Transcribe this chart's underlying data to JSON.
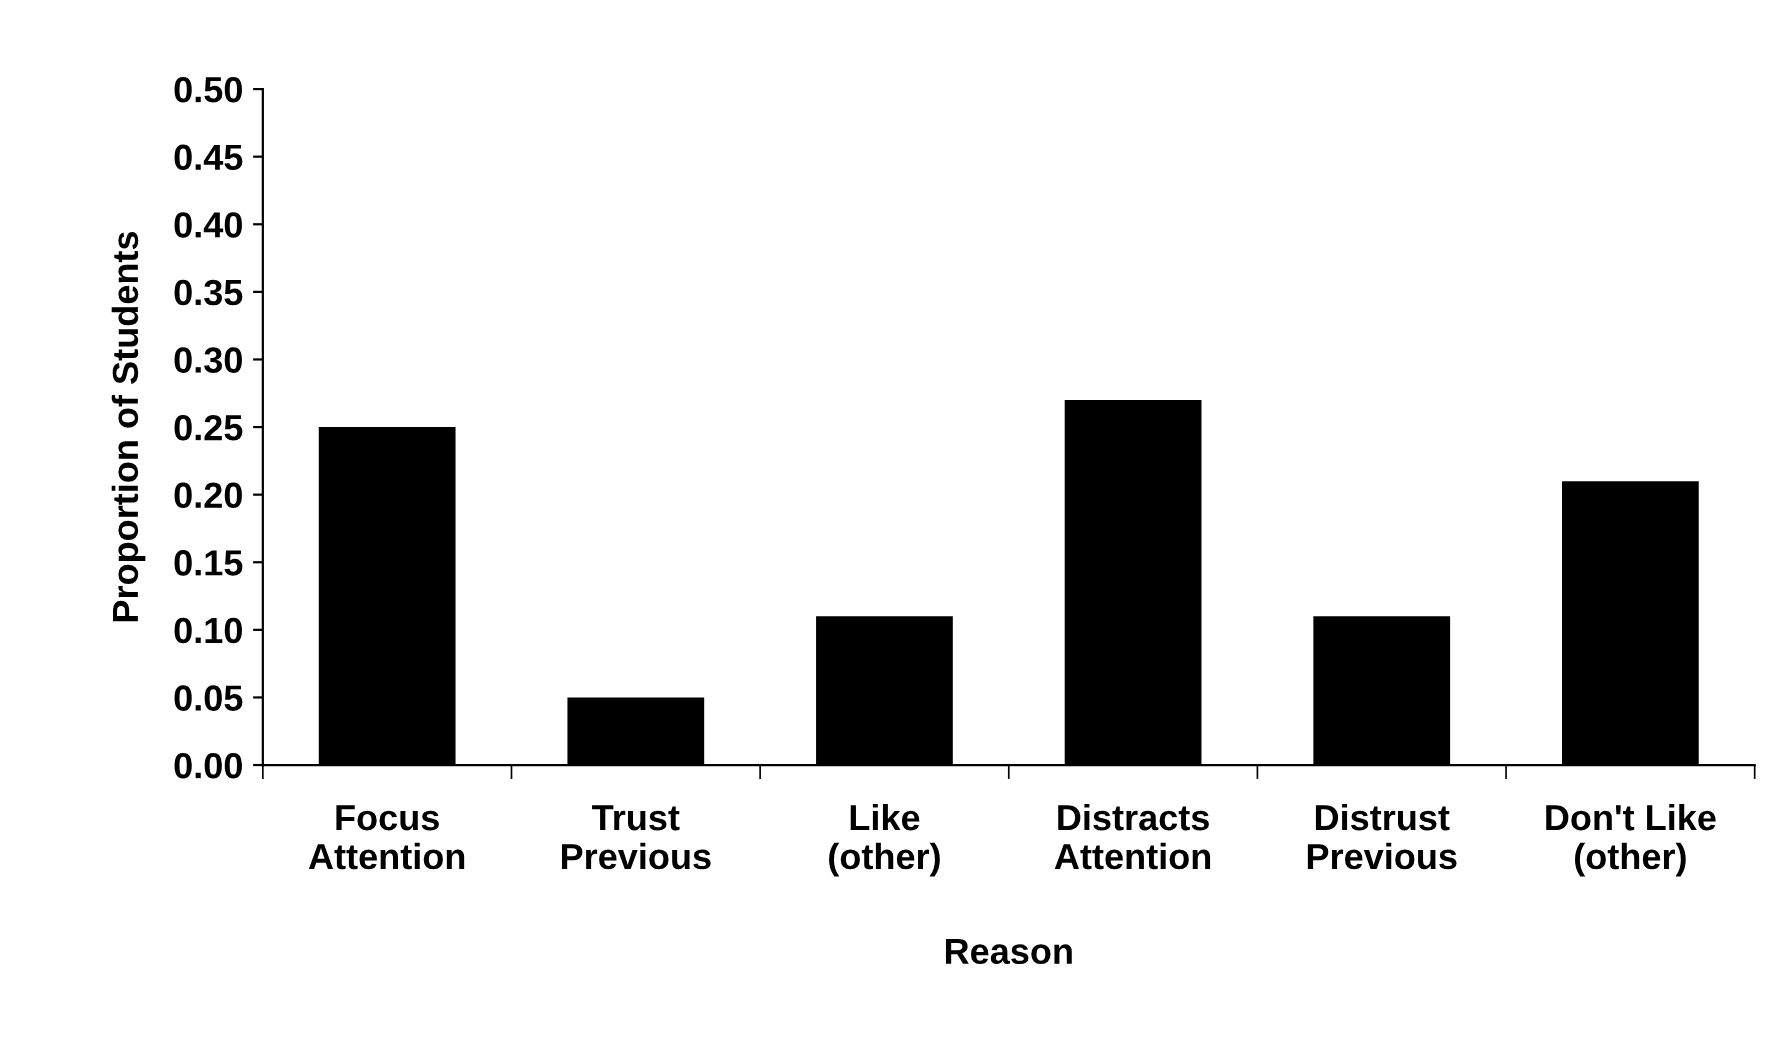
{
  "chart_data": {
    "type": "bar",
    "xlabel": "Reason",
    "ylabel": "Proportion of Students",
    "categories": [
      "Focus\nAttention",
      "Trust\nPrevious",
      "Like\n(other)",
      "Distracts\nAttention",
      "Distrust\nPrevious",
      "Don't Like\n(other)"
    ],
    "values": [
      0.25,
      0.05,
      0.11,
      0.27,
      0.11,
      0.21
    ],
    "color": "#000000",
    "ylim": [
      0,
      0.5
    ],
    "yticks": [
      {
        "value": 0,
        "label": "0.00"
      },
      {
        "value": 0.05,
        "label": "0.05"
      },
      {
        "value": 0.1,
        "label": "0.10"
      },
      {
        "value": 0.15,
        "label": "0.15"
      },
      {
        "value": 0.2,
        "label": "0.20"
      },
      {
        "value": 0.25,
        "label": "0.25"
      },
      {
        "value": 0.3,
        "label": "0.30"
      },
      {
        "value": 0.35,
        "label": "0.35"
      },
      {
        "value": 0.4,
        "label": "0.40"
      },
      {
        "value": 0.45,
        "label": "0.45"
      },
      {
        "value": 0.5,
        "label": "0.50"
      }
    ],
    "grid": false,
    "legend": false
  }
}
